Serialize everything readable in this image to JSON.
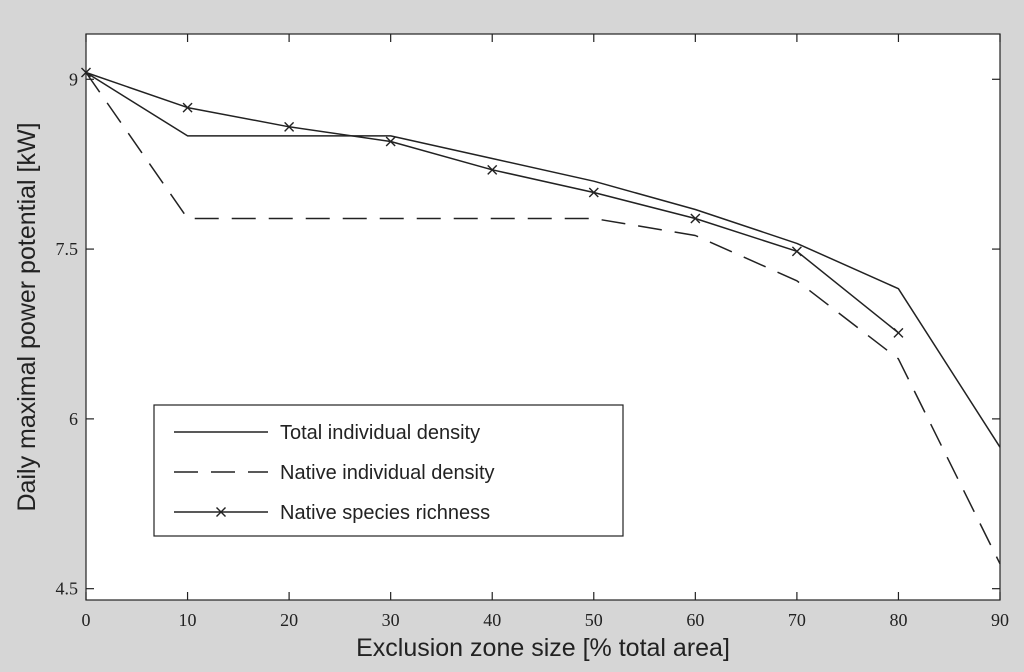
{
  "chart_data": {
    "type": "line",
    "title": "",
    "xlabel": "Exclusion zone size [% total area]",
    "ylabel": "Daily maximal power potential [kW]",
    "xlim": [
      0,
      90
    ],
    "ylim": [
      4.4,
      9.4
    ],
    "x_ticks": [
      0,
      10,
      20,
      30,
      40,
      50,
      60,
      70,
      80,
      90
    ],
    "x_tick_labels": [
      "0",
      "10",
      "20",
      "30",
      "40",
      "50",
      "60",
      "70",
      "80",
      "90"
    ],
    "y_ticks": [
      4.5,
      6,
      7.5,
      9
    ],
    "y_tick_labels": [
      "4.5",
      "6",
      "7.5",
      "9"
    ],
    "grid": false,
    "legend_position": "lower-left",
    "background_color": "#ffffff",
    "figure_background": "#d6d6d6",
    "series": [
      {
        "name": "Total individual density",
        "style": "solid",
        "marker": "none",
        "color": "#222222",
        "x": [
          0,
          10,
          20,
          30,
          40,
          50,
          60,
          70,
          80,
          90
        ],
        "values": [
          9.06,
          8.5,
          8.5,
          8.5,
          8.3,
          8.1,
          7.85,
          7.55,
          7.15,
          5.75
        ]
      },
      {
        "name": "Native individual density",
        "style": "dashed",
        "marker": "none",
        "color": "#222222",
        "x": [
          0,
          10,
          20,
          30,
          40,
          50,
          60,
          70,
          80,
          90
        ],
        "values": [
          9.06,
          7.77,
          7.77,
          7.77,
          7.77,
          7.77,
          7.62,
          7.22,
          6.53,
          4.72
        ]
      },
      {
        "name": "Native species richness",
        "style": "solid",
        "marker": "x",
        "color": "#222222",
        "x": [
          0,
          10,
          20,
          30,
          40,
          50,
          60,
          70,
          80
        ],
        "values": [
          9.06,
          8.75,
          8.58,
          8.45,
          8.2,
          8.0,
          7.77,
          7.48,
          6.76
        ]
      }
    ]
  }
}
